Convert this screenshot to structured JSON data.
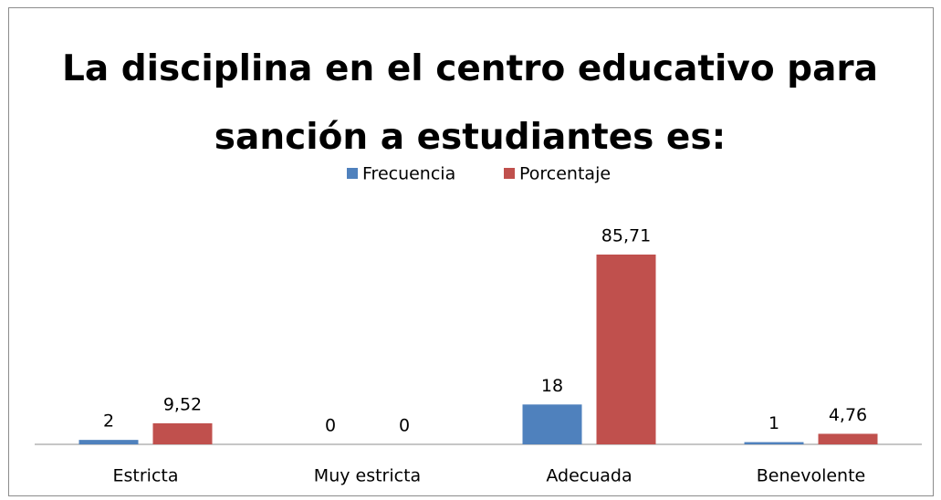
{
  "chart_data": {
    "type": "bar",
    "title": "La disciplina en el centro educativo para sanción a estudiantes es:",
    "categories": [
      "Estricta",
      "Muy estricta",
      "Adecuada",
      "Benevolente"
    ],
    "series": [
      {
        "name": "Frecuencia",
        "color": "#4f81bd",
        "values": [
          2,
          0,
          18,
          1
        ]
      },
      {
        "name": "Porcentaje",
        "color": "#c0504d",
        "values": [
          9.52,
          0,
          85.71,
          4.76
        ],
        "value_labels": [
          "9,52",
          "0",
          "85,71",
          "4,76"
        ]
      }
    ]
  }
}
